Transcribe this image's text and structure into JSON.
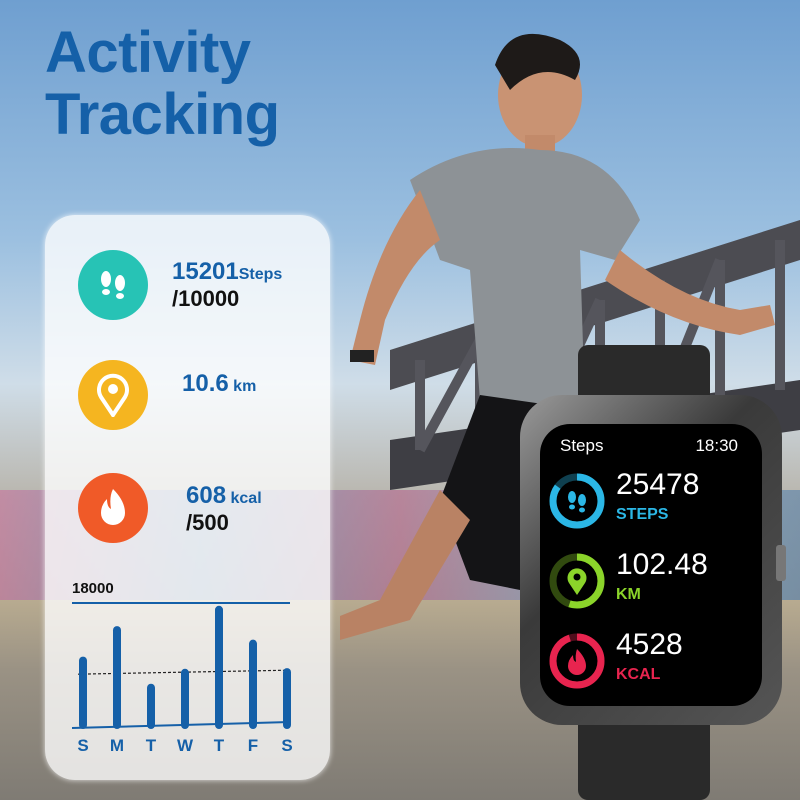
{
  "headline": {
    "line1": "Activity",
    "line2": "Tracking"
  },
  "panel": {
    "steps": {
      "value": "15201",
      "unit": "Steps",
      "goal": "/10000",
      "icon": "footprints-icon",
      "color": "#27c3b5"
    },
    "distance": {
      "value": "10.6",
      "unit": "km",
      "icon": "location-pin-icon",
      "color": "#f5b520"
    },
    "calories": {
      "value": "608",
      "unit": "kcal",
      "goal": "/500",
      "icon": "flame-icon",
      "color": "#f05a28"
    }
  },
  "chart_data": {
    "type": "bar",
    "categories": [
      "S",
      "M",
      "T",
      "W",
      "T",
      "F",
      "S"
    ],
    "values": [
      9500,
      14000,
      5500,
      7700,
      17000,
      12000,
      7800
    ],
    "max_label": "18000",
    "ylim": [
      0,
      18000
    ],
    "goal_line": 7500,
    "color": "#1560a8"
  },
  "watch": {
    "title": "Steps",
    "time": "18:30",
    "metrics": [
      {
        "value": "25478",
        "label": "STEPS",
        "color": "#2bb7e6",
        "progress": 0.85,
        "icon": "footprints-icon"
      },
      {
        "value": "102.48",
        "label": "KM",
        "color": "#8bd42a",
        "progress": 0.55,
        "icon": "location-pin-icon"
      },
      {
        "value": "4528",
        "label": "KCAL",
        "color": "#e8244f",
        "progress": 0.95,
        "icon": "flame-icon"
      }
    ]
  }
}
